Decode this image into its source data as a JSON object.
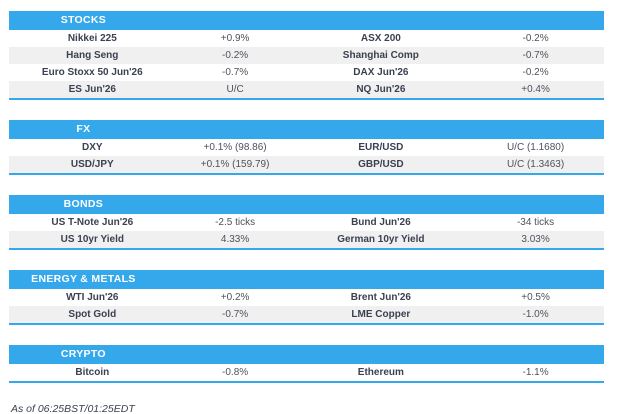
{
  "colors": {
    "accent": "#35a8ec",
    "row_alt": "#f0f0f1",
    "header_text": "#ffffff",
    "label_text": "#3b4150",
    "value_text": "#4d525b"
  },
  "sections": [
    {
      "title": "STOCKS",
      "rows": [
        [
          "Nikkei 225",
          "+0.9%",
          "ASX 200",
          "-0.2%"
        ],
        [
          "Hang Seng",
          "-0.2%",
          "Shanghai Comp",
          "-0.7%"
        ],
        [
          "Euro Stoxx 50 Jun'26",
          "-0.7%",
          "DAX Jun'26",
          "-0.2%"
        ],
        [
          "ES Jun'26",
          "U/C",
          "NQ Jun'26",
          "+0.4%"
        ]
      ]
    },
    {
      "title": "FX",
      "rows": [
        [
          "DXY",
          "+0.1% (98.86)",
          "EUR/USD",
          "U/C (1.1680)"
        ],
        [
          "USD/JPY",
          "+0.1% (159.79)",
          "GBP/USD",
          "U/C (1.3463)"
        ]
      ]
    },
    {
      "title": "BONDS",
      "rows": [
        [
          "US T-Note Jun'26",
          "-2.5 ticks",
          "Bund Jun'26",
          "-34 ticks"
        ],
        [
          "US 10yr Yield",
          "4.33%",
          "German 10yr Yield",
          "3.03%"
        ]
      ]
    },
    {
      "title": "ENERGY & METALS",
      "rows": [
        [
          "WTI Jun'26",
          "+0.2%",
          "Brent Jun'26",
          "+0.5%"
        ],
        [
          "Spot Gold",
          "-0.7%",
          "LME Copper",
          "-1.0%"
        ]
      ]
    },
    {
      "title": "CRYPTO",
      "rows": [
        [
          "Bitcoin",
          "-0.8%",
          "Ethereum",
          "-1.1%"
        ]
      ]
    }
  ],
  "footer": {
    "as_of": "As of 06:25BST/01:25EDT"
  }
}
